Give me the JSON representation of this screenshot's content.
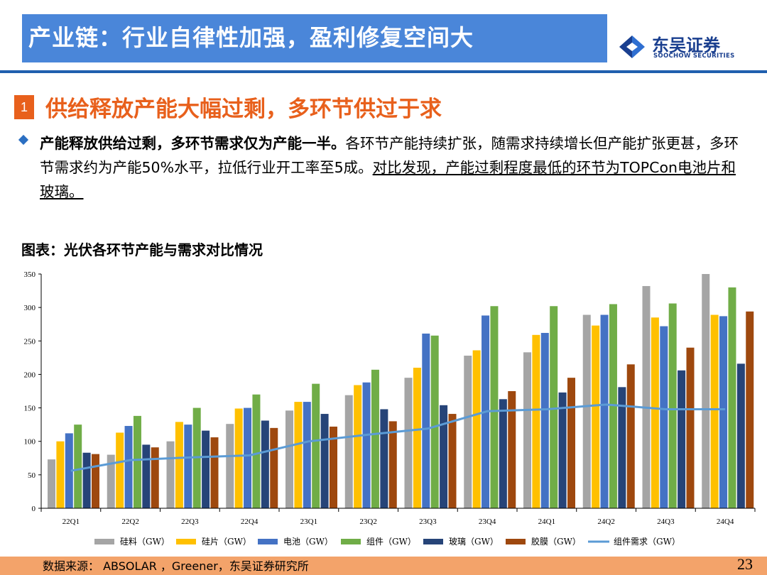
{
  "header": {
    "title": "产业链：行业自律性加强，盈利修复空间大",
    "logo_cn": "东吴证券",
    "logo_en": "SOOCHOW SECURITIES"
  },
  "section": {
    "number": "1",
    "title": "供给释放产能大幅过剩，多环节供过于求"
  },
  "bullet": {
    "bold": "产能释放供给过剩，多环节需求仅为产能一半。",
    "normal": "各环节产能持续扩张，随需求持续增长但产能扩张更甚，多环节需求约为产能50%水平，拉低行业开工率至5成。",
    "underlined": "对比发现，产能过剩程度最低的环节为TOPCon电池片和玻璃。"
  },
  "chart_title": "图表：光伏各环节产能与需求对比情况",
  "source": "数据来源：  ABSOLAR ，Greener，东吴证券研究所",
  "page_number": "23",
  "colors": {
    "title_bg": "#4a86d9",
    "accent_orange": "#e8601c",
    "brand_blue": "#1a3f8f"
  },
  "chart_data": {
    "type": "bar",
    "categories": [
      "22Q1",
      "22Q2",
      "22Q3",
      "22Q4",
      "23Q1",
      "23Q2",
      "23Q3",
      "23Q4",
      "24Q1",
      "24Q2",
      "24Q3",
      "24Q4"
    ],
    "ylim": [
      0,
      350
    ],
    "yticks": [
      0,
      50,
      100,
      150,
      200,
      250,
      300,
      350
    ],
    "legend_position": "bottom",
    "series": [
      {
        "name": "硅料（GW）",
        "type": "bar",
        "color": "#a5a5a5",
        "values": [
          73,
          80,
          100,
          126,
          146,
          169,
          195,
          228,
          233,
          289,
          332,
          350
        ]
      },
      {
        "name": "硅片（GW）",
        "type": "bar",
        "color": "#ffc000",
        "values": [
          100,
          113,
          129,
          149,
          159,
          184,
          210,
          236,
          259,
          273,
          285,
          289
        ]
      },
      {
        "name": "电池（GW）",
        "type": "bar",
        "color": "#4472c4",
        "values": [
          112,
          123,
          125,
          150,
          159,
          188,
          261,
          288,
          262,
          289,
          272,
          287
        ]
      },
      {
        "name": "组件（GW）",
        "type": "bar",
        "color": "#70ad47",
        "values": [
          125,
          138,
          150,
          170,
          186,
          207,
          258,
          302,
          302,
          305,
          306,
          330
        ]
      },
      {
        "name": "玻璃（GW）",
        "type": "bar",
        "color": "#264478",
        "values": [
          83,
          95,
          116,
          131,
          141,
          148,
          154,
          163,
          173,
          181,
          206,
          216
        ]
      },
      {
        "name": "胶膜（GW）",
        "type": "bar",
        "color": "#9e480e",
        "values": [
          81,
          91,
          106,
          120,
          122,
          130,
          141,
          175,
          195,
          215,
          240,
          294
        ]
      },
      {
        "name": "组件需求（GW）",
        "type": "line",
        "color": "#5b9bd5",
        "values": [
          56,
          72,
          76,
          79,
          100,
          110,
          119,
          145,
          148,
          155,
          148,
          148
        ]
      }
    ]
  }
}
